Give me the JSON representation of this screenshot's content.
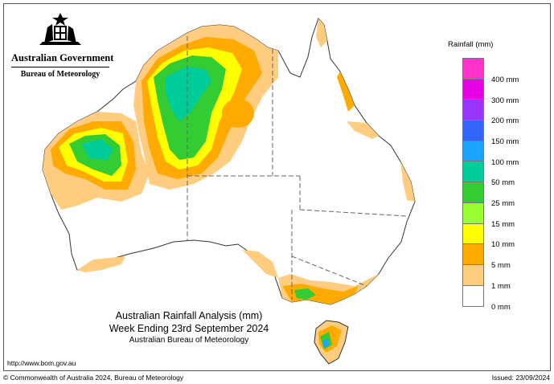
{
  "header": {
    "org_name": "Australian Government",
    "org_sub": "Bureau of Meteorology",
    "crest": "coat-of-arms-icon"
  },
  "title": {
    "line1": "Australian Rainfall Analysis (mm)",
    "line2": "Week Ending 23rd September 2024",
    "line3": "Australian Bureau of Meteorology"
  },
  "url": "http://www.bom.gov.au",
  "footer": {
    "copyright": "© Commonwealth of Australia 2024, Bureau of Meteorology",
    "issued": "Issued: 23/09/2024"
  },
  "legend": {
    "title": "Rainfall (mm)",
    "items": [
      {
        "label": "400 mm",
        "color": "#ff33cc"
      },
      {
        "label": "300 mm",
        "color": "#e600e6"
      },
      {
        "label": "200 mm",
        "color": "#9933ff"
      },
      {
        "label": "150 mm",
        "color": "#3366ff"
      },
      {
        "label": "100 mm",
        "color": "#1aa3ff"
      },
      {
        "label": "50 mm",
        "color": "#00cc99"
      },
      {
        "label": "25 mm",
        "color": "#33cc33"
      },
      {
        "label": "15 mm",
        "color": "#99ff33"
      },
      {
        "label": "10 mm",
        "color": "#ffff00"
      },
      {
        "label": "5 mm",
        "color": "#ffaa00"
      },
      {
        "label": "1 mm",
        "color": "#ffcc80"
      },
      {
        "label": "0 mm",
        "color": "#ffffff"
      }
    ]
  }
}
